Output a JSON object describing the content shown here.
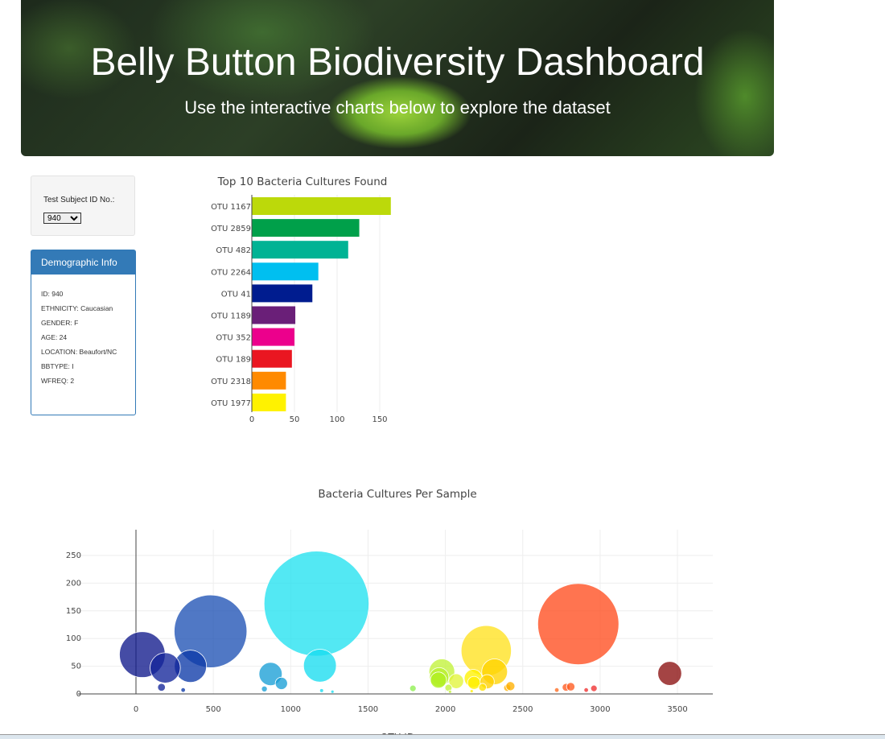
{
  "header": {
    "title": "Belly Button Biodiversity Dashboard",
    "subtitle": "Use the interactive charts below to explore the dataset"
  },
  "selector": {
    "label": "Test Subject ID No.:",
    "value": "940"
  },
  "demographic": {
    "title": "Demographic Info",
    "items": [
      "ID: 940",
      "ETHNICITY: Caucasian",
      "GENDER: F",
      "AGE: 24",
      "LOCATION: Beaufort/NC",
      "BBTYPE: I",
      "WFREQ: 2"
    ]
  },
  "chart_data": [
    {
      "type": "bar",
      "orientation": "horizontal",
      "title": "Top 10 Bacteria Cultures Found",
      "categories": [
        "OTU 1167",
        "OTU 2859",
        "OTU 482",
        "OTU 2264",
        "OTU 41",
        "OTU 1189",
        "OTU 352",
        "OTU 189",
        "OTU 2318",
        "OTU 1977"
      ],
      "values": [
        163,
        126,
        113,
        78,
        71,
        51,
        50,
        47,
        40,
        40
      ],
      "colors": [
        "#bcd90a",
        "#00a04a",
        "#00b394",
        "#00bff0",
        "#001c8f",
        "#6a1f78",
        "#ec008c",
        "#ea1621",
        "#ff8a00",
        "#fff200"
      ],
      "xticks": [
        0,
        50,
        100,
        150
      ],
      "xlim": [
        0,
        165
      ]
    },
    {
      "type": "scatter",
      "title": "Bacteria Cultures Per Sample",
      "xlabel": "OTU ID",
      "xlim": [
        -350,
        3750
      ],
      "ylim": [
        -12,
        290
      ],
      "xticks": [
        0,
        500,
        1000,
        1500,
        2000,
        2500,
        3000,
        3500
      ],
      "yticks": [
        0,
        50,
        100,
        150,
        200,
        250
      ],
      "points": [
        {
          "x": 1167,
          "y": 163,
          "c": "#22e2f0"
        },
        {
          "x": 2859,
          "y": 126,
          "c": "#ff4d1f"
        },
        {
          "x": 482,
          "y": 113,
          "c": "#1f52b5"
        },
        {
          "x": 2264,
          "y": 78,
          "c": "#ffe21f"
        },
        {
          "x": 41,
          "y": 71,
          "c": "#111a8c"
        },
        {
          "x": 1189,
          "y": 51,
          "c": "#18dcf0"
        },
        {
          "x": 352,
          "y": 50,
          "c": "#0d3aa8"
        },
        {
          "x": 189,
          "y": 47,
          "c": "#13259a"
        },
        {
          "x": 2318,
          "y": 40,
          "c": "#ffd400"
        },
        {
          "x": 1977,
          "y": 40,
          "c": "#c2f23a"
        },
        {
          "x": 3450,
          "y": 37,
          "c": "#8b1010"
        },
        {
          "x": 870,
          "y": 36,
          "c": "#1a9fd6"
        },
        {
          "x": 1960,
          "y": 30,
          "c": "#b8f030"
        },
        {
          "x": 1955,
          "y": 25,
          "c": "#b0f020"
        },
        {
          "x": 2070,
          "y": 23,
          "c": "#e2f53a"
        },
        {
          "x": 2180,
          "y": 28,
          "c": "#fff200"
        },
        {
          "x": 2185,
          "y": 20,
          "c": "#ffee00"
        },
        {
          "x": 2270,
          "y": 22,
          "c": "#ffd000"
        },
        {
          "x": 940,
          "y": 19,
          "c": "#1a9fd6"
        },
        {
          "x": 2020,
          "y": 11,
          "c": "#c2f23a"
        },
        {
          "x": 2240,
          "y": 12,
          "c": "#ffe000"
        },
        {
          "x": 2400,
          "y": 11,
          "c": "#ffb000"
        },
        {
          "x": 2420,
          "y": 14,
          "c": "#ffb000"
        },
        {
          "x": 165,
          "y": 12,
          "c": "#13259a"
        },
        {
          "x": 1790,
          "y": 10,
          "c": "#8ef050"
        },
        {
          "x": 2780,
          "y": 12,
          "c": "#ff5a1f"
        },
        {
          "x": 2810,
          "y": 13,
          "c": "#ff5a1f"
        },
        {
          "x": 2960,
          "y": 10,
          "c": "#f03030"
        },
        {
          "x": 2910,
          "y": 7,
          "c": "#f03030"
        },
        {
          "x": 2720,
          "y": 7,
          "c": "#ff6a1f"
        },
        {
          "x": 830,
          "y": 9,
          "c": "#1a9fd6"
        },
        {
          "x": 305,
          "y": 7,
          "c": "#0d3aa8"
        },
        {
          "x": 1200,
          "y": 6,
          "c": "#18dcf0"
        },
        {
          "x": 1270,
          "y": 4,
          "c": "#18dcf0"
        },
        {
          "x": 2170,
          "y": 5,
          "c": "#ffee00"
        },
        {
          "x": 2030,
          "y": 4,
          "c": "#c2f23a"
        }
      ]
    }
  ]
}
